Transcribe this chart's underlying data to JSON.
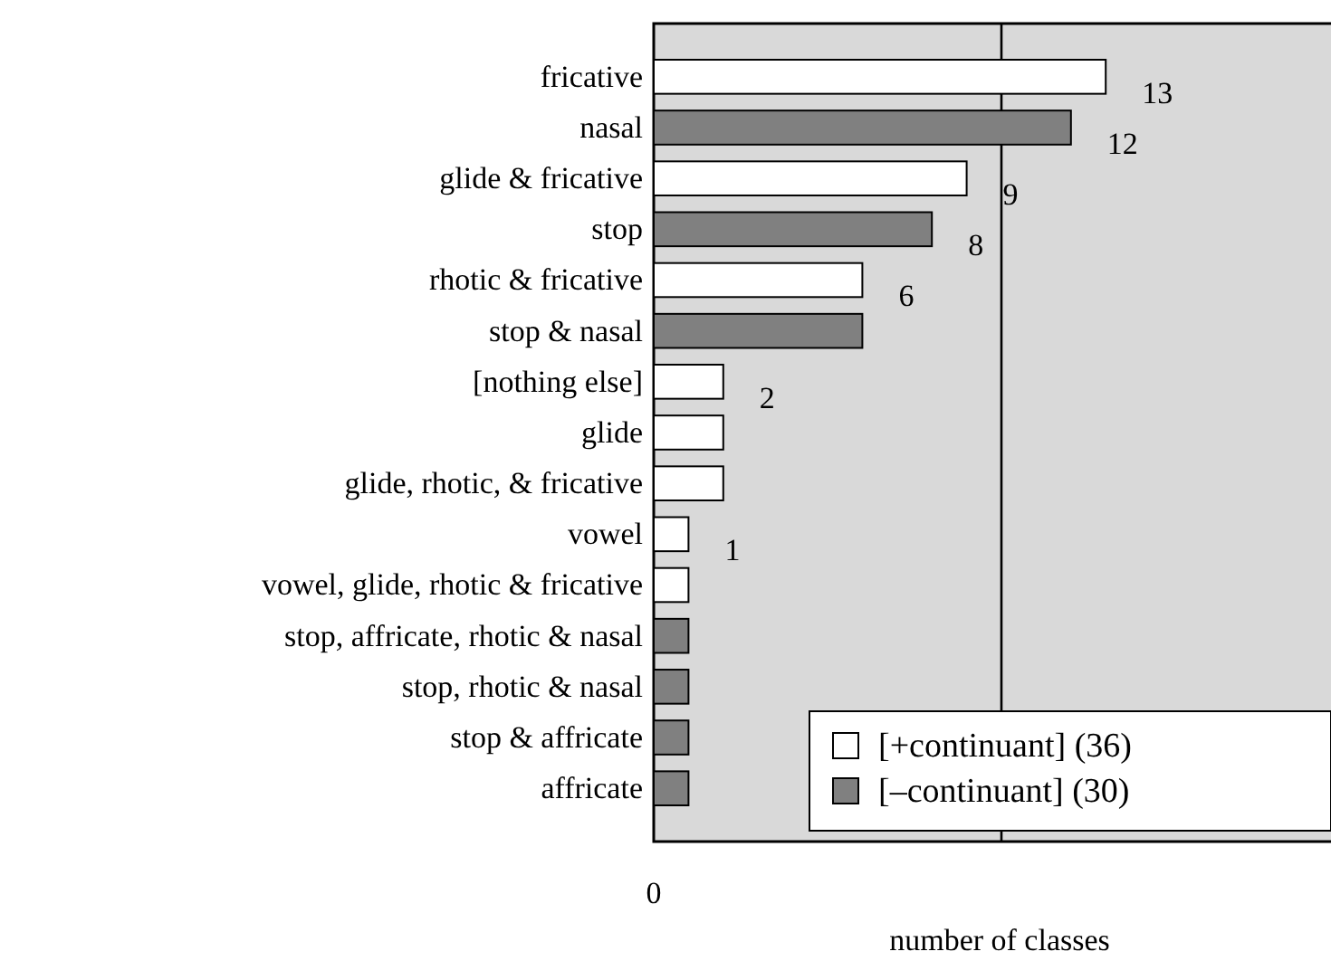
{
  "chart_data": {
    "type": "bar",
    "orientation": "horizontal",
    "xlabel": "number of classes",
    "categories": [
      "fricative",
      "nasal",
      "glide & fricative",
      "stop",
      "rhotic & fricative",
      "stop & nasal",
      "[nothing else]",
      "glide",
      "glide, rhotic, & fricative",
      "vowel",
      "vowel, glide, rhotic & fricative",
      "stop, affricate, rhotic & nasal",
      "stop, rhotic & nasal",
      "stop & affricate",
      "affricate"
    ],
    "series": [
      {
        "name": "[+continuant] (36)",
        "color": "#ffffff",
        "values": [
          13,
          null,
          9,
          null,
          6,
          null,
          2,
          2,
          2,
          1,
          1,
          null,
          null,
          null,
          null
        ],
        "value_labels": [
          "13",
          null,
          "9",
          null,
          "6",
          null,
          "2",
          null,
          null,
          "1",
          null,
          null,
          null,
          null,
          null
        ]
      },
      {
        "name": "[–continuant] (30)",
        "color": "#808080",
        "values": [
          null,
          12,
          null,
          8,
          null,
          6,
          null,
          null,
          null,
          null,
          null,
          1,
          1,
          1,
          1
        ],
        "value_labels": [
          null,
          "12",
          null,
          "8",
          null,
          null,
          null,
          null,
          null,
          null,
          null,
          null,
          null,
          null,
          null
        ]
      }
    ],
    "xlim": [
      0,
      20
    ],
    "annotations": [
      "0"
    ],
    "ref_lines": [
      {
        "axis": "x",
        "value": 10,
        "label": null,
        "color": "#000000"
      }
    ],
    "legend": "bottom right"
  }
}
